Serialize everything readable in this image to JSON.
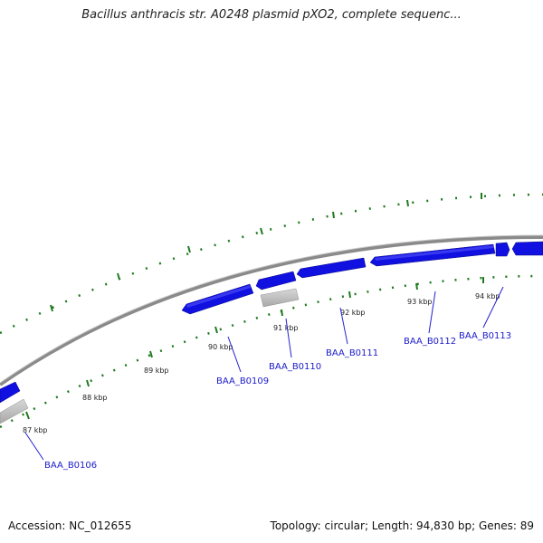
{
  "title": "Bacillus anthracis str. A0248 plasmid pXO2, complete sequenc...",
  "footer": {
    "accession": "Accession: NC_012655",
    "summary": "Topology: circular; Length: 94,830 bp; Genes: 89"
  },
  "colors": {
    "backbone": "#8a8a8a",
    "gene_forward": "#1010e0",
    "gene_pseudo": "#b5b5b5",
    "tick": "#1f7a1f",
    "gene_label": "#1a1acc"
  },
  "tick_labels": [
    "87 kbp",
    "88 kbp",
    "89 kbp",
    "90 kbp",
    "91 kbp",
    "92 kbp",
    "93 kbp",
    "94 kbp"
  ],
  "gene_labels": [
    "BAA_B0106",
    "BAA_B0109",
    "BAA_B0110",
    "BAA_B0111",
    "BAA_B0112",
    "BAA_B0113"
  ]
}
